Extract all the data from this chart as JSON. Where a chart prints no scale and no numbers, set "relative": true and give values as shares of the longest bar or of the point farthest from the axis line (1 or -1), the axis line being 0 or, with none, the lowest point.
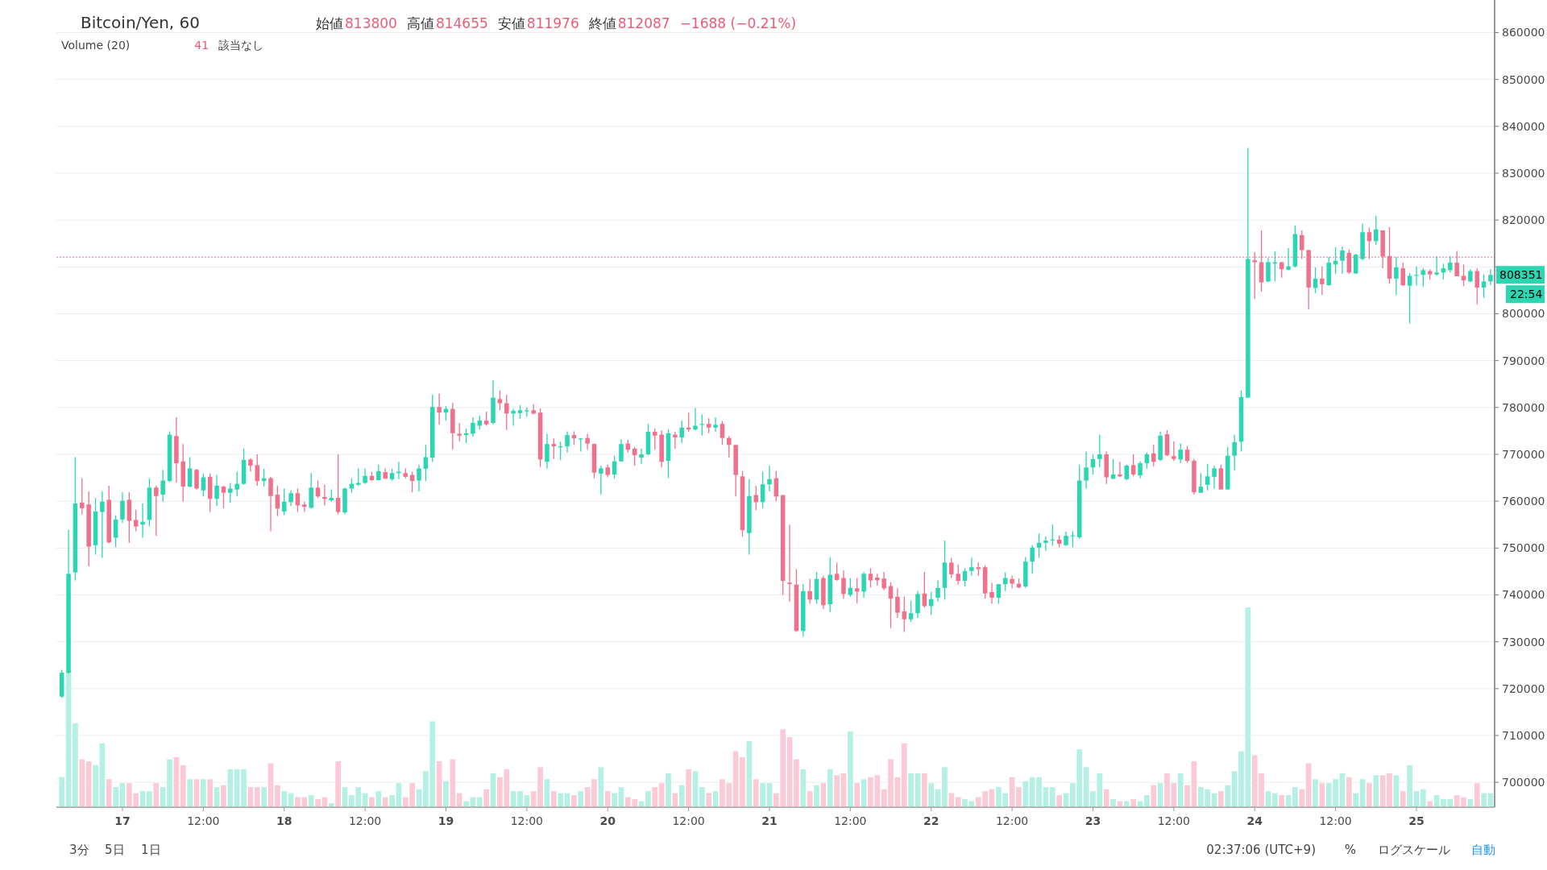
{
  "chart_data": [
    {
      "type": "candlestick",
      "title": "Bitcoin/Yen, 60",
      "annotations": [
        "始値",
        "813800",
        "高値",
        "814655",
        "安値",
        "811976",
        "終値",
        "812087",
        "−1688 (−0.21%)",
        "Volume (20)",
        "41",
        "該当なし",
        "3分",
        "5日",
        "1日",
        "02:37:06 (UTC+9)",
        "%",
        "ログスケール",
        "自動",
        "808351",
        "22:54"
      ],
      "ylim": [
        694700,
        866100
      ],
      "yticks": [
        700000,
        710000,
        720000,
        730000,
        740000,
        750000,
        760000,
        770000,
        780000,
        790000,
        800000,
        {
          "value": 810000,
          "label": null
        },
        820000,
        830000,
        840000,
        850000,
        860000
      ],
      "grid": "y",
      "ref_lines": [
        {
          "axis": "y",
          "value": 812087,
          "color": "#f0718c",
          "line_style": "dotted"
        }
      ],
      "categories": [
        null,
        null,
        null,
        null,
        null,
        null,
        null,
        null,
        null,
        "17",
        null,
        null,
        null,
        null,
        null,
        null,
        null,
        null,
        null,
        null,
        null,
        "12:00",
        null,
        null,
        null,
        null,
        null,
        null,
        null,
        null,
        null,
        null,
        null,
        "18",
        null,
        null,
        null,
        null,
        null,
        null,
        null,
        null,
        null,
        null,
        null,
        "12:00",
        null,
        null,
        null,
        null,
        null,
        null,
        null,
        null,
        null,
        null,
        null,
        "19",
        null,
        null,
        null,
        null,
        null,
        null,
        null,
        null,
        null,
        null,
        null,
        "12:00",
        null,
        null,
        null,
        null,
        null,
        null,
        null,
        null,
        null,
        null,
        null,
        "20",
        null,
        null,
        null,
        null,
        null,
        null,
        null,
        null,
        null,
        null,
        null,
        "12:00",
        null,
        null,
        null,
        null,
        null,
        null,
        null,
        null,
        null,
        null,
        null,
        "21",
        null,
        null,
        null,
        null,
        null,
        null,
        null,
        null,
        null,
        null,
        null,
        "12:00",
        null,
        null,
        null,
        null,
        null,
        null,
        null,
        null,
        null,
        null,
        null,
        "22",
        null,
        null,
        null,
        null,
        null,
        null,
        null,
        null,
        null,
        null,
        null,
        "12:00",
        null,
        null,
        null,
        null,
        null,
        null,
        null,
        null,
        null,
        null,
        null,
        "23",
        null,
        null,
        null,
        null,
        null,
        null,
        null,
        null,
        null,
        null,
        null,
        "12:00",
        null,
        null,
        null,
        null,
        null,
        null,
        null,
        null,
        null,
        null,
        null,
        "24",
        null,
        null,
        null,
        null,
        null,
        null,
        null,
        null,
        null,
        null,
        null,
        "12:00",
        null,
        null,
        null,
        null,
        null,
        null,
        null,
        null,
        null,
        null,
        null,
        "25",
        null,
        null,
        null,
        null,
        null,
        null,
        null,
        null,
        null,
        null,
        null
      ],
      "colors": [
        "#2ad7b2",
        "#2ad7b2",
        "#2ad7b2",
        "#f0718c",
        "#f0718c",
        "#2ad7b2",
        "#2ad7b2",
        "#f0718c",
        "#2ad7b2",
        "#2ad7b2",
        "#f0718c",
        "#f0718c",
        "#2ad7b2",
        "#2ad7b2",
        "#f0718c",
        "#2ad7b2",
        "#2ad7b2",
        "#f0718c",
        "#f0718c",
        "#2ad7b2",
        "#f0718c",
        "#2ad7b2",
        "#f0718c",
        "#2ad7b2",
        "#f0718c",
        "#2ad7b2",
        "#2ad7b2",
        "#2ad7b2",
        "#f0718c",
        "#f0718c",
        "#2ad7b2",
        "#f0718c",
        "#f0718c",
        "#2ad7b2",
        "#2ad7b2",
        "#f0718c",
        "#f0718c",
        "#2ad7b2",
        "#f0718c",
        "#f0718c",
        "#2ad7b2",
        "#f0718c",
        "#2ad7b2",
        "#2ad7b2",
        "#2ad7b2",
        "#2ad7b2",
        "#f0718c",
        "#2ad7b2",
        "#f0718c",
        "#2ad7b2",
        "#2ad7b2",
        "#f0718c",
        "#f0718c",
        "#2ad7b2",
        "#2ad7b2",
        "#2ad7b2",
        "#f0718c",
        "#2ad7b2",
        "#f0718c",
        "#f0718c",
        "#2ad7b2",
        "#2ad7b2",
        "#2ad7b2",
        "#f0718c",
        "#2ad7b2",
        "#f0718c",
        "#f0718c",
        "#2ad7b2",
        "#2ad7b2",
        "#2ad7b2",
        "#f0718c",
        "#f0718c",
        "#2ad7b2",
        "#f0718c",
        "#2ad7b2",
        "#2ad7b2",
        "#f0718c",
        "#2ad7b2",
        "#f0718c",
        "#f0718c",
        "#2ad7b2",
        "#f0718c",
        "#2ad7b2",
        "#2ad7b2",
        "#f0718c",
        "#f0718c",
        "#2ad7b2",
        "#2ad7b2",
        "#f0718c",
        "#f0718c",
        "#2ad7b2",
        "#f0718c",
        "#2ad7b2",
        "#f0718c",
        "#2ad7b2",
        "#2ad7b2",
        "#f0718c",
        "#2ad7b2",
        "#f0718c",
        "#f0718c",
        "#f0718c",
        "#f0718c",
        "#2ad7b2",
        "#f0718c",
        "#2ad7b2",
        "#2ad7b2",
        "#f0718c",
        "#f0718c",
        "#f0718c",
        "#f0718c",
        "#2ad7b2",
        "#f0718c",
        "#2ad7b2",
        "#f0718c",
        "#2ad7b2",
        "#f0718c",
        "#f0718c",
        "#2ad7b2",
        "#f0718c",
        "#2ad7b2",
        "#f0718c",
        "#f0718c",
        "#f0718c",
        "#f0718c",
        "#f0718c",
        "#f0718c",
        "#2ad7b2",
        "#2ad7b2",
        "#f0718c",
        "#2ad7b2",
        "#2ad7b2",
        "#2ad7b2",
        "#f0718c",
        "#f0718c",
        "#2ad7b2",
        "#2ad7b2",
        "#f0718c",
        "#f0718c",
        "#f0718c",
        "#2ad7b2",
        "#2ad7b2",
        "#f0718c",
        "#f0718c",
        "#2ad7b2",
        "#2ad7b2",
        "#2ad7b2",
        "#2ad7b2",
        "#2ad7b2",
        "#f0718c",
        "#2ad7b2",
        "#2ad7b2",
        "#2ad7b2",
        "#2ad7b2",
        "#2ad7b2",
        "#2ad7b2",
        "#f0718c",
        "#2ad7b2",
        "#f0718c",
        "#2ad7b2",
        "#f0718c",
        "#2ad7b2",
        "#2ad7b2",
        "#f0718c",
        "#2ad7b2",
        "#f0718c",
        "#f0718c",
        "#2ad7b2",
        "#f0718c",
        "#f0718c",
        "#2ad7b2",
        "#2ad7b2",
        "#2ad7b2",
        "#f0718c",
        "#2ad7b2",
        "#2ad7b2",
        "#2ad7b2",
        "#2ad7b2",
        "#f0718c",
        "#f0718c",
        "#2ad7b2",
        "#2ad7b2",
        "#f0718c",
        "#2ad7b2",
        "#2ad7b2",
        "#f0718c",
        "#f0718c",
        "#2ad7b2",
        "#f0718c",
        "#2ad7b2",
        "#2ad7b2",
        "#2ad7b2",
        "#f0718c",
        "#2ad7b2",
        "#2ad7b2",
        "#f0718c",
        "#2ad7b2",
        "#f0718c",
        "#f0718c",
        "#2ad7b2",
        "#f0718c",
        "#2ad7b2",
        "#2ad7b2",
        "#2ad7b2",
        "#f0718c",
        "#2ad7b2",
        "#2ad7b2",
        "#2ad7b2",
        "#f0718c",
        "#f0718c",
        "#2ad7b2",
        "#f0718c",
        "#2ad7b2",
        "#2ad7b2"
      ],
      "ohlc": [
        [
          718300,
          724000,
          718000,
          723400
        ],
        [
          723400,
          753900,
          723200,
          744500
        ],
        [
          744800,
          769400,
          743100,
          759500
        ],
        [
          759700,
          764900,
          757200,
          758500
        ],
        [
          759300,
          762100,
          746100,
          750300
        ],
        [
          750600,
          760700,
          748600,
          757800
        ],
        [
          757700,
          762100,
          747900,
          759900
        ],
        [
          760300,
          763300,
          751000,
          751200
        ],
        [
          752200,
          757000,
          750200,
          756100
        ],
        [
          756100,
          761900,
          755400,
          760100
        ],
        [
          760300,
          761900,
          751100,
          755800
        ],
        [
          756000,
          758200,
          753600,
          754600
        ],
        [
          755000,
          759500,
          752200,
          755600
        ],
        [
          756000,
          764900,
          754600,
          762900
        ],
        [
          762900,
          763300,
          752600,
          761100
        ],
        [
          761400,
          766700,
          759900,
          764400
        ],
        [
          764300,
          774900,
          764100,
          774200
        ],
        [
          773900,
          777900,
          764000,
          768100
        ],
        [
          768500,
          772200,
          759900,
          763100
        ],
        [
          763100,
          769400,
          763000,
          767000
        ],
        [
          766700,
          766900,
          762500,
          762700
        ],
        [
          762300,
          765900,
          761000,
          765100
        ],
        [
          765200,
          765900,
          757700,
          760500
        ],
        [
          760500,
          765600,
          759000,
          763300
        ],
        [
          763100,
          763300,
          758500,
          761800
        ],
        [
          761800,
          763900,
          759700,
          762700
        ],
        [
          762500,
          766300,
          761100,
          763700
        ],
        [
          763700,
          771200,
          763500,
          768800
        ],
        [
          768900,
          769200,
          766300,
          767600
        ],
        [
          767700,
          770000,
          763300,
          764300
        ],
        [
          764300,
          766900,
          763100,
          764900
        ],
        [
          764900,
          765200,
          753600,
          761100
        ],
        [
          761400,
          763300,
          756800,
          758400
        ],
        [
          757800,
          762700,
          757000,
          759900
        ],
        [
          759800,
          762300,
          759000,
          761700
        ],
        [
          761700,
          762700,
          757700,
          759100
        ],
        [
          759300,
          759900,
          757700,
          758800
        ],
        [
          758600,
          766000,
          758400,
          762900
        ],
        [
          762900,
          764400,
          760700,
          761000
        ],
        [
          760900,
          763500,
          759100,
          760500
        ],
        [
          760200,
          762500,
          759900,
          760700
        ],
        [
          760700,
          770000,
          757200,
          757700
        ],
        [
          757600,
          762900,
          757200,
          762700
        ],
        [
          762700,
          764900,
          761800,
          763700
        ],
        [
          763500,
          767000,
          763300,
          763900
        ],
        [
          763900,
          767000,
          763700,
          765400
        ],
        [
          765400,
          766300,
          764300,
          764500
        ],
        [
          764500,
          767800,
          764400,
          766400
        ],
        [
          766200,
          767000,
          764700,
          764800
        ],
        [
          764700,
          766900,
          764400,
          766000
        ],
        [
          766000,
          768400,
          764700,
          766300
        ],
        [
          766000,
          767000,
          764900,
          765200
        ],
        [
          765600,
          766300,
          761900,
          764300
        ],
        [
          764400,
          767800,
          762100,
          767000
        ],
        [
          766900,
          772000,
          764300,
          769400
        ],
        [
          769300,
          782700,
          768400,
          780100
        ],
        [
          780100,
          783000,
          776300,
          778900
        ],
        [
          778900,
          780300,
          777200,
          779700
        ],
        [
          779700,
          781000,
          771000,
          774500
        ],
        [
          774400,
          776700,
          772800,
          774000
        ],
        [
          774100,
          775500,
          772400,
          774500
        ],
        [
          774400,
          777900,
          773800,
          776700
        ],
        [
          776100,
          778300,
          775300,
          777200
        ],
        [
          777200,
          779100,
          776100,
          776400
        ],
        [
          776700,
          785800,
          776400,
          782100
        ],
        [
          781800,
          783600,
          779400,
          780900
        ],
        [
          780900,
          782700,
          775200,
          778700
        ],
        [
          778700,
          779700,
          776100,
          779300
        ],
        [
          778800,
          780500,
          777600,
          779400
        ],
        [
          779200,
          780000,
          778100,
          779400
        ],
        [
          779400,
          780700,
          778500,
          778700
        ],
        [
          778900,
          779800,
          767300,
          768900
        ],
        [
          768400,
          774400,
          767000,
          772200
        ],
        [
          772200,
          773400,
          769000,
          771700
        ],
        [
          771500,
          772700,
          768800,
          771700
        ],
        [
          771700,
          774900,
          770400,
          774100
        ],
        [
          774100,
          774900,
          772000,
          773400
        ],
        [
          773200,
          773500,
          770600,
          773400
        ],
        [
          773500,
          774400,
          771000,
          772300
        ],
        [
          772200,
          772300,
          764900,
          766100
        ],
        [
          765900,
          767600,
          761400,
          767000
        ],
        [
          767200,
          767800,
          765100,
          765600
        ],
        [
          765700,
          769700,
          764800,
          768500
        ],
        [
          768500,
          773200,
          768400,
          772200
        ],
        [
          772300,
          773100,
          770400,
          771000
        ],
        [
          771200,
          771600,
          767600,
          769800
        ],
        [
          769300,
          771200,
          768000,
          770000
        ],
        [
          770000,
          776500,
          769800,
          774800
        ],
        [
          774800,
          775500,
          771000,
          774000
        ],
        [
          774200,
          775100,
          767200,
          768400
        ],
        [
          768600,
          775300,
          764900,
          774500
        ],
        [
          774200,
          774800,
          771200,
          773600
        ],
        [
          773600,
          777200,
          772400,
          775700
        ],
        [
          775700,
          778900,
          774800,
          775300
        ],
        [
          775300,
          779900,
          775100,
          776100
        ],
        [
          776300,
          778500,
          774000,
          776500
        ],
        [
          776500,
          777700,
          774500,
          775700
        ],
        [
          775700,
          777900,
          774800,
          776300
        ],
        [
          776500,
          777100,
          772000,
          773500
        ],
        [
          773500,
          773900,
          769300,
          772000
        ],
        [
          772000,
          772000,
          761000,
          765600
        ],
        [
          765300,
          766400,
          752400,
          753800
        ],
        [
          753200,
          764700,
          748600,
          761100
        ],
        [
          761300,
          763300,
          758100,
          759800
        ],
        [
          759800,
          766300,
          758500,
          763600
        ],
        [
          763600,
          767600,
          762100,
          764700
        ],
        [
          764900,
          766400,
          760000,
          761000
        ],
        [
          761300,
          761300,
          740000,
          743000
        ],
        [
          742600,
          755000,
          738600,
          742300
        ],
        [
          742200,
          745500,
          732100,
          732300
        ],
        [
          732300,
          742300,
          731100,
          740800
        ],
        [
          740800,
          743400,
          738100,
          739000
        ],
        [
          739000,
          744900,
          738100,
          743400
        ],
        [
          743600,
          744100,
          737000,
          737800
        ],
        [
          738000,
          748100,
          736400,
          744300
        ],
        [
          744500,
          746900,
          743000,
          743200
        ],
        [
          743600,
          745200,
          739200,
          740200
        ],
        [
          740000,
          743600,
          739600,
          741500
        ],
        [
          741400,
          743600,
          738200,
          740700
        ],
        [
          740700,
          744900,
          739400,
          744500
        ],
        [
          744500,
          745700,
          741600,
          743100
        ],
        [
          743700,
          744500,
          742000,
          743100
        ],
        [
          743500,
          744900,
          741000,
          741400
        ],
        [
          741900,
          742700,
          732900,
          739200
        ],
        [
          739600,
          741400,
          735100,
          736200
        ],
        [
          736500,
          739600,
          732100,
          734800
        ],
        [
          734800,
          738800,
          734300,
          736100
        ],
        [
          736100,
          740800,
          735100,
          740200
        ],
        [
          740300,
          744900,
          737300,
          737600
        ],
        [
          737600,
          740700,
          735800,
          739100
        ],
        [
          739400,
          743100,
          738600,
          741500
        ],
        [
          741500,
          751600,
          739000,
          746900
        ],
        [
          746900,
          747900,
          743600,
          744400
        ],
        [
          744500,
          746500,
          742200,
          743000
        ],
        [
          743000,
          745700,
          741800,
          745100
        ],
        [
          745100,
          747900,
          744100,
          745900
        ],
        [
          745900,
          746900,
          744100,
          745500
        ],
        [
          745900,
          746300,
          739200,
          740300
        ],
        [
          740600,
          742600,
          738100,
          739400
        ],
        [
          739400,
          742300,
          738100,
          742300
        ],
        [
          742300,
          744800,
          740800,
          743600
        ],
        [
          743400,
          744100,
          741400,
          742400
        ],
        [
          742400,
          743500,
          741400,
          741600
        ],
        [
          741800,
          748100,
          741500,
          747100
        ],
        [
          747100,
          750600,
          744500,
          750100
        ],
        [
          750100,
          753100,
          747900,
          751100
        ],
        [
          751100,
          752400,
          749400,
          751600
        ],
        [
          751600,
          755000,
          750500,
          751800
        ],
        [
          751800,
          752700,
          750200,
          750900
        ],
        [
          750600,
          753500,
          750500,
          752600
        ],
        [
          752600,
          753600,
          750200,
          752700
        ],
        [
          752300,
          767800,
          752000,
          764400
        ],
        [
          764400,
          770600,
          762700,
          767200
        ],
        [
          767200,
          770000,
          765700,
          769000
        ],
        [
          769000,
          774200,
          767200,
          770000
        ],
        [
          770000,
          770600,
          763700,
          765100
        ],
        [
          764800,
          769000,
          764700,
          765700
        ],
        [
          765700,
          768400,
          765100,
          765300
        ],
        [
          764700,
          767800,
          764500,
          767600
        ],
        [
          767700,
          770000,
          765300,
          765700
        ],
        [
          765500,
          768500,
          764900,
          768100
        ],
        [
          768100,
          770400,
          766900,
          770000
        ],
        [
          770200,
          772000,
          767400,
          768400
        ],
        [
          768800,
          774900,
          768600,
          774000
        ],
        [
          774300,
          775200,
          769600,
          769800
        ],
        [
          769600,
          772800,
          768600,
          769000
        ],
        [
          768900,
          772300,
          768100,
          771000
        ],
        [
          771000,
          771800,
          768200,
          768600
        ],
        [
          768600,
          769000,
          761400,
          761900
        ],
        [
          761800,
          766000,
          761800,
          763100
        ],
        [
          763500,
          768000,
          762300,
          765300
        ],
        [
          765200,
          767600,
          762700,
          767000
        ],
        [
          767000,
          767800,
          762500,
          762500
        ],
        [
          762500,
          771600,
          762500,
          769700
        ],
        [
          769700,
          774200,
          766600,
          772600
        ],
        [
          772700,
          783600,
          770600,
          782200
        ],
        [
          782100,
          835400,
          782100,
          811700
        ],
        [
          811400,
          813100,
          803200,
          811000
        ],
        [
          811000,
          817800,
          804700,
          806700
        ],
        [
          806900,
          811900,
          806700,
          811000
        ],
        [
          810700,
          813300,
          806900,
          811000
        ],
        [
          811000,
          811000,
          807700,
          809500
        ],
        [
          809400,
          814000,
          809300,
          810100
        ],
        [
          810100,
          818800,
          809900,
          817000
        ],
        [
          816800,
          817800,
          811700,
          813600
        ],
        [
          813600,
          813600,
          801000,
          805600
        ],
        [
          805500,
          809900,
          804400,
          807500
        ],
        [
          807500,
          810100,
          804000,
          806300
        ],
        [
          806100,
          812100,
          806000,
          810900
        ],
        [
          810500,
          814200,
          808500,
          811300
        ],
        [
          811300,
          814300,
          808500,
          813500
        ],
        [
          813000,
          813700,
          808500,
          808800
        ],
        [
          808600,
          812800,
          808500,
          812600
        ],
        [
          811700,
          819200,
          811400,
          817400
        ],
        [
          817400,
          818400,
          811700,
          815500
        ],
        [
          815500,
          820900,
          814700,
          818000
        ],
        [
          817800,
          817800,
          809700,
          812200
        ],
        [
          812300,
          818500,
          806400,
          807500
        ],
        [
          807500,
          812100,
          804000,
          809900
        ],
        [
          809700,
          810900,
          805900,
          806100
        ],
        [
          806000,
          808700,
          797900,
          808100
        ],
        [
          808200,
          810100,
          806000,
          808300
        ],
        [
          808300,
          809700,
          805800,
          809300
        ],
        [
          809100,
          809500,
          807300,
          808400
        ],
        [
          808400,
          812300,
          808100,
          808800
        ],
        [
          808800,
          810700,
          807300,
          809700
        ],
        [
          809300,
          812300,
          808800,
          810900
        ],
        [
          810900,
          813400,
          808000,
          808000
        ],
        [
          808100,
          810500,
          805900,
          807100
        ],
        [
          806900,
          809500,
          806700,
          809100
        ],
        [
          809100,
          809700,
          802000,
          805600
        ],
        [
          805600,
          808400,
          803400,
          806900
        ],
        [
          806900,
          809500,
          806100,
          808300
        ]
      ]
    },
    {
      "type": "bar",
      "relative": true,
      "values": [
        0.15,
        0.68,
        0.42,
        0.24,
        0.23,
        0.21,
        0.32,
        0.14,
        0.1,
        0.12,
        0.12,
        0.07,
        0.08,
        0.08,
        0.12,
        0.1,
        0.24,
        0.25,
        0.21,
        0.14,
        0.14,
        0.14,
        0.14,
        0.1,
        0.11,
        0.19,
        0.19,
        0.19,
        0.1,
        0.1,
        0.1,
        0.22,
        0.11,
        0.08,
        0.07,
        0.05,
        0.05,
        0.06,
        0.04,
        0.05,
        0.02,
        0.23,
        0.1,
        0.06,
        0.1,
        0.07,
        0.05,
        0.08,
        0.05,
        0.06,
        0.12,
        0.05,
        0.12,
        0.09,
        0.18,
        0.43,
        0.23,
        0.13,
        0.24,
        0.07,
        0.03,
        0.05,
        0.05,
        0.09,
        0.17,
        0.15,
        0.19,
        0.08,
        0.08,
        0.06,
        0.08,
        0.2,
        0.14,
        0.08,
        0.07,
        0.07,
        0.06,
        0.08,
        0.1,
        0.14,
        0.2,
        0.08,
        0.07,
        0.1,
        0.05,
        0.04,
        0.03,
        0.08,
        0.1,
        0.12,
        0.17,
        0.07,
        0.11,
        0.19,
        0.18,
        0.1,
        0.07,
        0.08,
        0.14,
        0.12,
        0.28,
        0.25,
        0.33,
        0.14,
        0.12,
        0.12,
        0.07,
        0.39,
        0.35,
        0.24,
        0.19,
        0.08,
        0.11,
        0.12,
        0.19,
        0.16,
        0.17,
        0.38,
        0.12,
        0.14,
        0.15,
        0.16,
        0.09,
        0.24,
        0.15,
        0.32,
        0.17,
        0.17,
        0.17,
        0.12,
        0.09,
        0.2,
        0.07,
        0.05,
        0.04,
        0.03,
        0.05,
        0.08,
        0.09,
        0.1,
        0.07,
        0.15,
        0.1,
        0.13,
        0.15,
        0.15,
        0.1,
        0.1,
        0.06,
        0.07,
        0.12,
        0.29,
        0.2,
        0.08,
        0.17,
        0.09,
        0.04,
        0.03,
        0.03,
        0.04,
        0.03,
        0.06,
        0.11,
        0.12,
        0.17,
        0.12,
        0.17,
        0.11,
        0.23,
        0.1,
        0.09,
        0.07,
        0.08,
        0.11,
        0.18,
        0.28,
        1,
        0.26,
        0.17,
        0.08,
        0.07,
        0.06,
        0.06,
        0.1,
        0.09,
        0.22,
        0.14,
        0.12,
        0.12,
        0.14,
        0.17,
        0.15,
        0.07,
        0.14,
        0.12,
        0.16,
        0.16,
        0.17,
        0.16,
        0.08,
        0.21,
        0.08,
        0.09,
        0.03,
        0.06,
        0.04,
        0.04,
        0.06,
        0.05,
        0.04,
        0.12,
        0.07,
        0.07
      ],
      "colors": [
        "#b4f0e3",
        "#b4f0e3",
        "#b4f0e3",
        "#fbcad6",
        "#fbcad6",
        "#b4f0e3",
        "#b4f0e3",
        "#fbcad6",
        "#b4f0e3",
        "#b4f0e3",
        "#fbcad6",
        "#fbcad6",
        "#b4f0e3",
        "#b4f0e3",
        "#fbcad6",
        "#b4f0e3",
        "#b4f0e3",
        "#fbcad6",
        "#fbcad6",
        "#b4f0e3",
        "#fbcad6",
        "#b4f0e3",
        "#fbcad6",
        "#b4f0e3",
        "#fbcad6",
        "#b4f0e3",
        "#b4f0e3",
        "#b4f0e3",
        "#fbcad6",
        "#fbcad6",
        "#b4f0e3",
        "#fbcad6",
        "#fbcad6",
        "#b4f0e3",
        "#b4f0e3",
        "#fbcad6",
        "#fbcad6",
        "#b4f0e3",
        "#fbcad6",
        "#fbcad6",
        "#b4f0e3",
        "#fbcad6",
        "#b4f0e3",
        "#b4f0e3",
        "#b4f0e3",
        "#b4f0e3",
        "#fbcad6",
        "#b4f0e3",
        "#fbcad6",
        "#b4f0e3",
        "#b4f0e3",
        "#fbcad6",
        "#fbcad6",
        "#b4f0e3",
        "#b4f0e3",
        "#b4f0e3",
        "#fbcad6",
        "#b4f0e3",
        "#fbcad6",
        "#fbcad6",
        "#b4f0e3",
        "#b4f0e3",
        "#b4f0e3",
        "#fbcad6",
        "#b4f0e3",
        "#fbcad6",
        "#fbcad6",
        "#b4f0e3",
        "#b4f0e3",
        "#b4f0e3",
        "#fbcad6",
        "#fbcad6",
        "#b4f0e3",
        "#fbcad6",
        "#b4f0e3",
        "#b4f0e3",
        "#fbcad6",
        "#b4f0e3",
        "#fbcad6",
        "#fbcad6",
        "#b4f0e3",
        "#fbcad6",
        "#b4f0e3",
        "#b4f0e3",
        "#fbcad6",
        "#fbcad6",
        "#b4f0e3",
        "#b4f0e3",
        "#fbcad6",
        "#fbcad6",
        "#b4f0e3",
        "#fbcad6",
        "#b4f0e3",
        "#fbcad6",
        "#b4f0e3",
        "#b4f0e3",
        "#fbcad6",
        "#b4f0e3",
        "#fbcad6",
        "#fbcad6",
        "#fbcad6",
        "#fbcad6",
        "#b4f0e3",
        "#fbcad6",
        "#b4f0e3",
        "#b4f0e3",
        "#fbcad6",
        "#fbcad6",
        "#fbcad6",
        "#fbcad6",
        "#b4f0e3",
        "#fbcad6",
        "#b4f0e3",
        "#fbcad6",
        "#b4f0e3",
        "#fbcad6",
        "#fbcad6",
        "#b4f0e3",
        "#fbcad6",
        "#b4f0e3",
        "#fbcad6",
        "#fbcad6",
        "#fbcad6",
        "#fbcad6",
        "#fbcad6",
        "#fbcad6",
        "#b4f0e3",
        "#b4f0e3",
        "#fbcad6",
        "#b4f0e3",
        "#b4f0e3",
        "#b4f0e3",
        "#fbcad6",
        "#fbcad6",
        "#b4f0e3",
        "#b4f0e3",
        "#fbcad6",
        "#fbcad6",
        "#fbcad6",
        "#b4f0e3",
        "#b4f0e3",
        "#fbcad6",
        "#fbcad6",
        "#b4f0e3",
        "#b4f0e3",
        "#b4f0e3",
        "#b4f0e3",
        "#b4f0e3",
        "#fbcad6",
        "#b4f0e3",
        "#b4f0e3",
        "#b4f0e3",
        "#b4f0e3",
        "#b4f0e3",
        "#b4f0e3",
        "#fbcad6",
        "#b4f0e3",
        "#fbcad6",
        "#b4f0e3",
        "#fbcad6",
        "#b4f0e3",
        "#b4f0e3",
        "#fbcad6",
        "#b4f0e3",
        "#fbcad6",
        "#fbcad6",
        "#b4f0e3",
        "#fbcad6",
        "#fbcad6",
        "#b4f0e3",
        "#b4f0e3",
        "#b4f0e3",
        "#fbcad6",
        "#b4f0e3",
        "#b4f0e3",
        "#b4f0e3",
        "#b4f0e3",
        "#fbcad6",
        "#fbcad6",
        "#b4f0e3",
        "#b4f0e3",
        "#fbcad6",
        "#b4f0e3",
        "#b4f0e3",
        "#fbcad6",
        "#fbcad6",
        "#b4f0e3",
        "#fbcad6",
        "#b4f0e3",
        "#b4f0e3",
        "#b4f0e3",
        "#fbcad6",
        "#b4f0e3",
        "#b4f0e3",
        "#fbcad6",
        "#b4f0e3",
        "#fbcad6",
        "#fbcad6",
        "#b4f0e3",
        "#fbcad6",
        "#b4f0e3",
        "#b4f0e3",
        "#b4f0e3",
        "#fbcad6",
        "#b4f0e3",
        "#b4f0e3",
        "#b4f0e3",
        "#fbcad6",
        "#fbcad6",
        "#b4f0e3",
        "#fbcad6",
        "#b4f0e3",
        "#b4f0e3"
      ]
    }
  ]
}
